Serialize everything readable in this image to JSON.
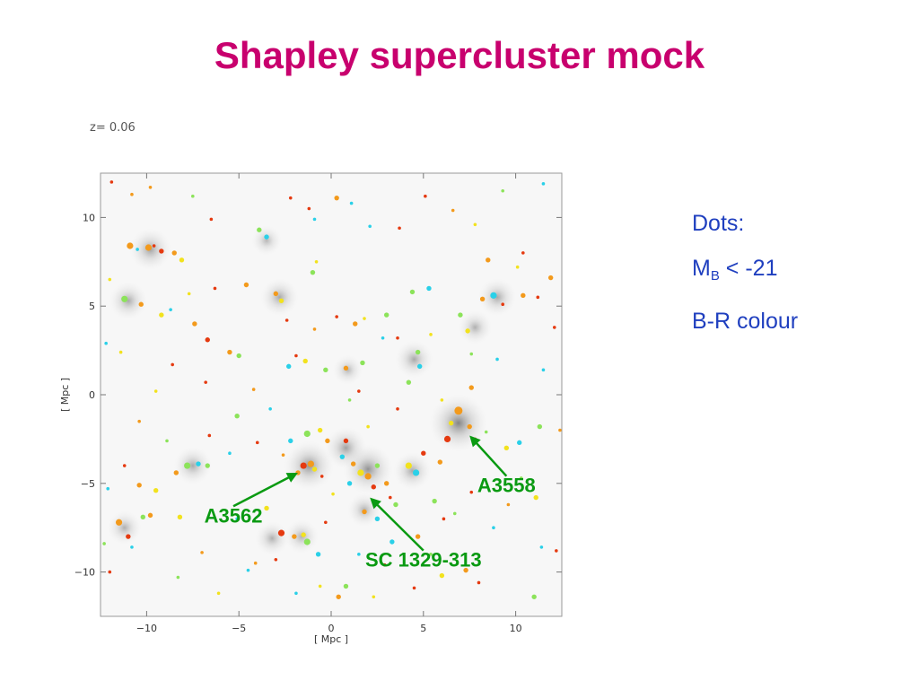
{
  "slide": {
    "title": "Shapley supercluster mock",
    "title_color": "#c8006e"
  },
  "legend": {
    "line1": "Dots:",
    "line2_main": "M",
    "line2_sub": "B",
    "line2_rest": " < -21",
    "line3": "B-R colour",
    "color": "#1f3fbf"
  },
  "chart_data": {
    "type": "scatter",
    "title": "",
    "redshift_label": "z=  0.06",
    "xlabel": "[ Mpc ]",
    "ylabel": "[ Mpc ]",
    "xlim": [
      -12.5,
      12.5
    ],
    "ylim": [
      -12.5,
      12.5
    ],
    "xticks": [
      -10,
      -5,
      0,
      5,
      10
    ],
    "yticks": [
      -10,
      -5,
      0,
      5,
      10
    ],
    "xtick_labels": [
      "−10",
      "−5",
      "0",
      "5",
      "10"
    ],
    "ytick_labels": [
      "−10",
      "−5",
      "0",
      "5",
      "10"
    ],
    "grid": false,
    "background": "gray density map",
    "colors": {
      "red": "#e53a10",
      "orange": "#f39a1c",
      "yellow": "#f2e21e",
      "green": "#8ce35a",
      "cyan": "#2ad0e8"
    },
    "density_blobs": [
      {
        "x": 6.9,
        "y": -1.6,
        "w": 1.0
      },
      {
        "x": -1.2,
        "y": -4.0,
        "w": 0.8
      },
      {
        "x": 2.0,
        "y": -4.2,
        "w": 0.8
      },
      {
        "x": 0.8,
        "y": -3.0,
        "w": 0.6
      },
      {
        "x": -9.8,
        "y": 8.2,
        "w": 0.6
      },
      {
        "x": -11.0,
        "y": 5.3,
        "w": 0.5
      },
      {
        "x": -7.5,
        "y": -4.0,
        "w": 0.5
      },
      {
        "x": -2.8,
        "y": 5.5,
        "w": 0.5
      },
      {
        "x": 9.0,
        "y": 5.5,
        "w": 0.5
      },
      {
        "x": 4.5,
        "y": 2.0,
        "w": 0.5
      },
      {
        "x": -3.2,
        "y": -8.1,
        "w": 0.4
      },
      {
        "x": -1.6,
        "y": -8.0,
        "w": 0.4
      },
      {
        "x": 4.4,
        "y": -4.3,
        "w": 0.5
      },
      {
        "x": 1.8,
        "y": -6.5,
        "w": 0.4
      },
      {
        "x": -11.2,
        "y": -7.5,
        "w": 0.4
      },
      {
        "x": 0.9,
        "y": 1.4,
        "w": 0.3
      },
      {
        "x": -3.5,
        "y": 8.7,
        "w": 0.3
      },
      {
        "x": 7.8,
        "y": 3.8,
        "w": 0.4
      }
    ],
    "points": [
      {
        "x": -10.9,
        "y": 8.4,
        "c": "orange",
        "s": 4
      },
      {
        "x": -9.9,
        "y": 8.3,
        "c": "orange",
        "s": 4
      },
      {
        "x": -9.2,
        "y": 8.1,
        "c": "red",
        "s": 3
      },
      {
        "x": -8.5,
        "y": 8.0,
        "c": "orange",
        "s": 3
      },
      {
        "x": -8.1,
        "y": 7.6,
        "c": "yellow",
        "s": 3
      },
      {
        "x": -9.6,
        "y": 8.4,
        "c": "red",
        "s": 2
      },
      {
        "x": -10.5,
        "y": 8.2,
        "c": "cyan",
        "s": 2
      },
      {
        "x": -11.9,
        "y": 12.0,
        "c": "red",
        "s": 2
      },
      {
        "x": -10.8,
        "y": 11.3,
        "c": "orange",
        "s": 2
      },
      {
        "x": -11.2,
        "y": 5.4,
        "c": "green",
        "s": 4
      },
      {
        "x": -10.3,
        "y": 5.1,
        "c": "orange",
        "s": 3
      },
      {
        "x": -9.2,
        "y": 4.5,
        "c": "yellow",
        "s": 3
      },
      {
        "x": -8.7,
        "y": 4.8,
        "c": "cyan",
        "s": 2
      },
      {
        "x": -7.4,
        "y": 4.0,
        "c": "orange",
        "s": 3
      },
      {
        "x": -6.7,
        "y": 3.1,
        "c": "red",
        "s": 3
      },
      {
        "x": -5.5,
        "y": 2.4,
        "c": "orange",
        "s": 3
      },
      {
        "x": -5.0,
        "y": 2.2,
        "c": "green",
        "s": 3
      },
      {
        "x": -6.3,
        "y": 6.0,
        "c": "red",
        "s": 2
      },
      {
        "x": -12.0,
        "y": 6.5,
        "c": "yellow",
        "s": 2
      },
      {
        "x": -11.4,
        "y": 2.4,
        "c": "yellow",
        "s": 2
      },
      {
        "x": -3.5,
        "y": 8.9,
        "c": "cyan",
        "s": 3
      },
      {
        "x": -3.9,
        "y": 9.3,
        "c": "green",
        "s": 3
      },
      {
        "x": -4.6,
        "y": 6.2,
        "c": "orange",
        "s": 3
      },
      {
        "x": -3.0,
        "y": 5.7,
        "c": "orange",
        "s": 3
      },
      {
        "x": -2.7,
        "y": 5.3,
        "c": "yellow",
        "s": 3
      },
      {
        "x": -2.4,
        "y": 4.2,
        "c": "red",
        "s": 2
      },
      {
        "x": -2.2,
        "y": 11.1,
        "c": "red",
        "s": 2
      },
      {
        "x": -1.2,
        "y": 10.5,
        "c": "red",
        "s": 2
      },
      {
        "x": -0.9,
        "y": 9.9,
        "c": "cyan",
        "s": 2
      },
      {
        "x": 0.3,
        "y": 11.1,
        "c": "orange",
        "s": 3
      },
      {
        "x": 1.1,
        "y": 10.8,
        "c": "cyan",
        "s": 2
      },
      {
        "x": -0.8,
        "y": 7.5,
        "c": "yellow",
        "s": 2
      },
      {
        "x": -1.0,
        "y": 6.9,
        "c": "green",
        "s": 3
      },
      {
        "x": -2.3,
        "y": 1.6,
        "c": "cyan",
        "s": 3
      },
      {
        "x": -1.4,
        "y": 1.9,
        "c": "yellow",
        "s": 3
      },
      {
        "x": -0.3,
        "y": 1.4,
        "c": "green",
        "s": 3
      },
      {
        "x": 0.8,
        "y": 1.5,
        "c": "orange",
        "s": 3
      },
      {
        "x": 1.7,
        "y": 1.8,
        "c": "green",
        "s": 3
      },
      {
        "x": 1.3,
        "y": 4.0,
        "c": "orange",
        "s": 3
      },
      {
        "x": 1.8,
        "y": 4.3,
        "c": "yellow",
        "s": 2
      },
      {
        "x": 3.0,
        "y": 4.5,
        "c": "green",
        "s": 3
      },
      {
        "x": 1.5,
        "y": 0.2,
        "c": "red",
        "s": 2
      },
      {
        "x": 1.0,
        "y": -0.3,
        "c": "green",
        "s": 2
      },
      {
        "x": -3.3,
        "y": -0.8,
        "c": "cyan",
        "s": 2
      },
      {
        "x": 4.4,
        "y": 5.8,
        "c": "green",
        "s": 3
      },
      {
        "x": 5.3,
        "y": 6.0,
        "c": "cyan",
        "s": 3
      },
      {
        "x": 4.7,
        "y": 2.4,
        "c": "green",
        "s": 3
      },
      {
        "x": 4.8,
        "y": 1.6,
        "c": "cyan",
        "s": 3
      },
      {
        "x": 3.6,
        "y": 3.2,
        "c": "red",
        "s": 2
      },
      {
        "x": 5.4,
        "y": 3.4,
        "c": "yellow",
        "s": 2
      },
      {
        "x": 4.2,
        "y": 0.7,
        "c": "green",
        "s": 3
      },
      {
        "x": 6.0,
        "y": -0.3,
        "c": "yellow",
        "s": 2
      },
      {
        "x": 5.1,
        "y": 11.2,
        "c": "red",
        "s": 2
      },
      {
        "x": 8.2,
        "y": 5.4,
        "c": "orange",
        "s": 3
      },
      {
        "x": 8.8,
        "y": 5.6,
        "c": "cyan",
        "s": 4
      },
      {
        "x": 9.3,
        "y": 5.1,
        "c": "red",
        "s": 2
      },
      {
        "x": 10.4,
        "y": 5.6,
        "c": "orange",
        "s": 3
      },
      {
        "x": 11.2,
        "y": 5.5,
        "c": "red",
        "s": 2
      },
      {
        "x": 10.1,
        "y": 7.2,
        "c": "yellow",
        "s": 2
      },
      {
        "x": 8.5,
        "y": 7.6,
        "c": "orange",
        "s": 3
      },
      {
        "x": 7.0,
        "y": 4.5,
        "c": "green",
        "s": 3
      },
      {
        "x": 7.4,
        "y": 3.6,
        "c": "yellow",
        "s": 3
      },
      {
        "x": 7.6,
        "y": 2.3,
        "c": "green",
        "s": 2
      },
      {
        "x": 9.0,
        "y": 2.0,
        "c": "cyan",
        "s": 2
      },
      {
        "x": 7.6,
        "y": 0.4,
        "c": "orange",
        "s": 3
      },
      {
        "x": 12.1,
        "y": 3.8,
        "c": "red",
        "s": 2
      },
      {
        "x": 11.5,
        "y": 1.4,
        "c": "cyan",
        "s": 2
      },
      {
        "x": 6.9,
        "y": -0.9,
        "c": "orange",
        "s": 5
      },
      {
        "x": 6.5,
        "y": -1.6,
        "c": "yellow",
        "s": 3
      },
      {
        "x": 6.3,
        "y": -2.5,
        "c": "red",
        "s": 4
      },
      {
        "x": 7.5,
        "y": -1.8,
        "c": "orange",
        "s": 3
      },
      {
        "x": 7.8,
        "y": -2.5,
        "c": "red",
        "s": 2
      },
      {
        "x": 8.4,
        "y": -2.1,
        "c": "green",
        "s": 2
      },
      {
        "x": 9.5,
        "y": -3.0,
        "c": "yellow",
        "s": 3
      },
      {
        "x": 10.2,
        "y": -2.7,
        "c": "cyan",
        "s": 3
      },
      {
        "x": 11.3,
        "y": -1.8,
        "c": "green",
        "s": 3
      },
      {
        "x": -1.5,
        "y": -4.0,
        "c": "red",
        "s": 4
      },
      {
        "x": -1.1,
        "y": -3.9,
        "c": "orange",
        "s": 4
      },
      {
        "x": -0.9,
        "y": -4.2,
        "c": "yellow",
        "s": 3
      },
      {
        "x": -1.8,
        "y": -4.4,
        "c": "orange",
        "s": 3
      },
      {
        "x": -0.5,
        "y": -4.6,
        "c": "red",
        "s": 2
      },
      {
        "x": -1.3,
        "y": -2.2,
        "c": "green",
        "s": 4
      },
      {
        "x": -0.6,
        "y": -2.0,
        "c": "yellow",
        "s": 3
      },
      {
        "x": -0.2,
        "y": -2.6,
        "c": "orange",
        "s": 3
      },
      {
        "x": 0.8,
        "y": -2.6,
        "c": "red",
        "s": 3
      },
      {
        "x": 0.6,
        "y": -3.5,
        "c": "cyan",
        "s": 3
      },
      {
        "x": 1.2,
        "y": -3.9,
        "c": "orange",
        "s": 3
      },
      {
        "x": 1.6,
        "y": -4.4,
        "c": "yellow",
        "s": 4
      },
      {
        "x": 2.0,
        "y": -4.6,
        "c": "orange",
        "s": 4
      },
      {
        "x": 2.5,
        "y": -4.0,
        "c": "green",
        "s": 3
      },
      {
        "x": 2.3,
        "y": -5.2,
        "c": "red",
        "s": 3
      },
      {
        "x": 1.0,
        "y": -5.0,
        "c": "cyan",
        "s": 3
      },
      {
        "x": 3.0,
        "y": -5.0,
        "c": "orange",
        "s": 3
      },
      {
        "x": 3.2,
        "y": -5.8,
        "c": "red",
        "s": 2
      },
      {
        "x": 0.1,
        "y": -5.6,
        "c": "yellow",
        "s": 2
      },
      {
        "x": -0.3,
        "y": -7.2,
        "c": "red",
        "s": 2
      },
      {
        "x": 1.8,
        "y": -6.6,
        "c": "orange",
        "s": 3
      },
      {
        "x": 2.5,
        "y": -7.0,
        "c": "cyan",
        "s": 3
      },
      {
        "x": 3.5,
        "y": -6.2,
        "c": "green",
        "s": 3
      },
      {
        "x": 4.2,
        "y": -4.0,
        "c": "yellow",
        "s": 4
      },
      {
        "x": 4.6,
        "y": -4.4,
        "c": "cyan",
        "s": 4
      },
      {
        "x": 5.0,
        "y": -3.3,
        "c": "red",
        "s": 3
      },
      {
        "x": 5.9,
        "y": -3.8,
        "c": "orange",
        "s": 3
      },
      {
        "x": 5.6,
        "y": -6.0,
        "c": "green",
        "s": 3
      },
      {
        "x": 6.1,
        "y": -7.0,
        "c": "red",
        "s": 2
      },
      {
        "x": 4.7,
        "y": -8.0,
        "c": "orange",
        "s": 3
      },
      {
        "x": 3.3,
        "y": -8.3,
        "c": "cyan",
        "s": 3
      },
      {
        "x": 2.9,
        "y": -9.6,
        "c": "red",
        "s": 2
      },
      {
        "x": 1.5,
        "y": -9.0,
        "c": "cyan",
        "s": 2
      },
      {
        "x": 0.8,
        "y": -10.8,
        "c": "green",
        "s": 3
      },
      {
        "x": 0.4,
        "y": -11.4,
        "c": "orange",
        "s": 3
      },
      {
        "x": 2.3,
        "y": -11.4,
        "c": "yellow",
        "s": 2
      },
      {
        "x": -4.0,
        "y": -2.7,
        "c": "red",
        "s": 2
      },
      {
        "x": -2.2,
        "y": -2.6,
        "c": "cyan",
        "s": 3
      },
      {
        "x": -5.1,
        "y": -1.2,
        "c": "green",
        "s": 3
      },
      {
        "x": -3.5,
        "y": -6.4,
        "c": "yellow",
        "s": 3
      },
      {
        "x": -2.7,
        "y": -7.8,
        "c": "red",
        "s": 4
      },
      {
        "x": -2.0,
        "y": -8.0,
        "c": "orange",
        "s": 3
      },
      {
        "x": -1.5,
        "y": -7.9,
        "c": "yellow",
        "s": 3
      },
      {
        "x": -1.3,
        "y": -8.3,
        "c": "green",
        "s": 4
      },
      {
        "x": -0.7,
        "y": -9.0,
        "c": "cyan",
        "s": 3
      },
      {
        "x": -3.0,
        "y": -9.3,
        "c": "red",
        "s": 2
      },
      {
        "x": -4.1,
        "y": -9.5,
        "c": "orange",
        "s": 2
      },
      {
        "x": -5.1,
        "y": -7.0,
        "c": "cyan",
        "s": 2
      },
      {
        "x": -7.8,
        "y": -4.0,
        "c": "green",
        "s": 4
      },
      {
        "x": -7.2,
        "y": -3.9,
        "c": "cyan",
        "s": 3
      },
      {
        "x": -6.7,
        "y": -4.0,
        "c": "green",
        "s": 3
      },
      {
        "x": -8.4,
        "y": -4.4,
        "c": "orange",
        "s": 3
      },
      {
        "x": -9.5,
        "y": -5.4,
        "c": "yellow",
        "s": 3
      },
      {
        "x": -10.4,
        "y": -5.1,
        "c": "orange",
        "s": 3
      },
      {
        "x": -11.2,
        "y": -4.0,
        "c": "red",
        "s": 2
      },
      {
        "x": -12.1,
        "y": -5.3,
        "c": "cyan",
        "s": 2
      },
      {
        "x": -11.5,
        "y": -7.2,
        "c": "orange",
        "s": 4
      },
      {
        "x": -11.0,
        "y": -8.0,
        "c": "red",
        "s": 3
      },
      {
        "x": -10.8,
        "y": -8.6,
        "c": "cyan",
        "s": 2
      },
      {
        "x": -10.2,
        "y": -6.9,
        "c": "green",
        "s": 3
      },
      {
        "x": -9.8,
        "y": -6.8,
        "c": "orange",
        "s": 3
      },
      {
        "x": -8.2,
        "y": -6.9,
        "c": "yellow",
        "s": 3
      },
      {
        "x": -12.0,
        "y": -10.0,
        "c": "red",
        "s": 2
      },
      {
        "x": -8.3,
        "y": -10.3,
        "c": "green",
        "s": 2
      },
      {
        "x": -6.1,
        "y": -11.2,
        "c": "yellow",
        "s": 2
      },
      {
        "x": -4.5,
        "y": -9.9,
        "c": "cyan",
        "s": 2
      },
      {
        "x": -7.0,
        "y": -8.9,
        "c": "orange",
        "s": 2
      },
      {
        "x": -8.9,
        "y": -2.6,
        "c": "green",
        "s": 2
      },
      {
        "x": -10.4,
        "y": -1.5,
        "c": "orange",
        "s": 2
      },
      {
        "x": -9.5,
        "y": 0.2,
        "c": "yellow",
        "s": 2
      },
      {
        "x": -8.6,
        "y": 1.7,
        "c": "red",
        "s": 2
      },
      {
        "x": -6.8,
        "y": 0.7,
        "c": "red",
        "s": 2
      },
      {
        "x": -4.2,
        "y": 0.3,
        "c": "orange",
        "s": 2
      },
      {
        "x": -12.3,
        "y": -8.4,
        "c": "green",
        "s": 2
      },
      {
        "x": 6.0,
        "y": -10.2,
        "c": "yellow",
        "s": 3
      },
      {
        "x": 7.3,
        "y": -9.9,
        "c": "orange",
        "s": 3
      },
      {
        "x": 8.0,
        "y": -10.6,
        "c": "red",
        "s": 2
      },
      {
        "x": 8.8,
        "y": -7.5,
        "c": "cyan",
        "s": 2
      },
      {
        "x": 11.0,
        "y": -11.4,
        "c": "green",
        "s": 3
      },
      {
        "x": 11.4,
        "y": -8.6,
        "c": "cyan",
        "s": 2
      },
      {
        "x": 12.2,
        "y": -8.8,
        "c": "red",
        "s": 2
      },
      {
        "x": 10.3,
        "y": -4.7,
        "c": "green",
        "s": 2
      },
      {
        "x": 11.1,
        "y": -5.8,
        "c": "yellow",
        "s": 3
      },
      {
        "x": 9.6,
        "y": -6.2,
        "c": "orange",
        "s": 2
      },
      {
        "x": 7.6,
        "y": -5.5,
        "c": "red",
        "s": 2
      },
      {
        "x": 6.7,
        "y": -6.7,
        "c": "green",
        "s": 2
      },
      {
        "x": 10.4,
        "y": 8.0,
        "c": "red",
        "s": 2
      },
      {
        "x": 9.3,
        "y": 11.5,
        "c": "green",
        "s": 2
      },
      {
        "x": 11.5,
        "y": 11.9,
        "c": "cyan",
        "s": 2
      },
      {
        "x": 11.9,
        "y": 6.6,
        "c": "orange",
        "s": 3
      },
      {
        "x": 6.6,
        "y": 10.4,
        "c": "orange",
        "s": 2
      },
      {
        "x": 3.7,
        "y": 9.4,
        "c": "red",
        "s": 2
      },
      {
        "x": 2.1,
        "y": 9.5,
        "c": "cyan",
        "s": 2
      },
      {
        "x": -6.5,
        "y": 9.9,
        "c": "red",
        "s": 2
      },
      {
        "x": -7.5,
        "y": 11.2,
        "c": "green",
        "s": 2
      },
      {
        "x": -9.8,
        "y": 11.7,
        "c": "orange",
        "s": 2
      },
      {
        "x": -1.9,
        "y": 2.2,
        "c": "red",
        "s": 2
      },
      {
        "x": -0.9,
        "y": 3.7,
        "c": "orange",
        "s": 2
      },
      {
        "x": 0.3,
        "y": 4.4,
        "c": "red",
        "s": 2
      },
      {
        "x": 2.8,
        "y": 3.2,
        "c": "cyan",
        "s": 2
      },
      {
        "x": 3.6,
        "y": -0.8,
        "c": "red",
        "s": 2
      },
      {
        "x": 2.0,
        "y": -1.8,
        "c": "yellow",
        "s": 2
      },
      {
        "x": -2.6,
        "y": -3.4,
        "c": "orange",
        "s": 2
      },
      {
        "x": -5.5,
        "y": -3.3,
        "c": "cyan",
        "s": 2
      },
      {
        "x": -6.6,
        "y": -2.3,
        "c": "red",
        "s": 2
      },
      {
        "x": 5.4,
        "y": -9.0,
        "c": "green",
        "s": 2
      },
      {
        "x": 4.5,
        "y": -10.9,
        "c": "red",
        "s": 2
      },
      {
        "x": -0.6,
        "y": -10.8,
        "c": "yellow",
        "s": 2
      },
      {
        "x": -1.9,
        "y": -11.2,
        "c": "cyan",
        "s": 2
      },
      {
        "x": 7.8,
        "y": 9.6,
        "c": "yellow",
        "s": 2
      },
      {
        "x": 12.4,
        "y": -2.0,
        "c": "orange",
        "s": 2
      },
      {
        "x": -12.2,
        "y": 2.9,
        "c": "cyan",
        "s": 2
      },
      {
        "x": -7.7,
        "y": 5.7,
        "c": "yellow",
        "s": 2
      }
    ],
    "annotations": [
      {
        "text": "A3558",
        "x": 9.5,
        "y": -5.5,
        "tx": 7.5,
        "ty": -2.3
      },
      {
        "text": "A3562",
        "x": -5.3,
        "y": -7.2,
        "tx": -1.8,
        "ty": -4.4
      },
      {
        "text": "SC 1329-313",
        "x": 5.0,
        "y": -9.7,
        "tx": 2.1,
        "ty": -5.8
      }
    ],
    "annotation_color": "#0a9a12"
  }
}
